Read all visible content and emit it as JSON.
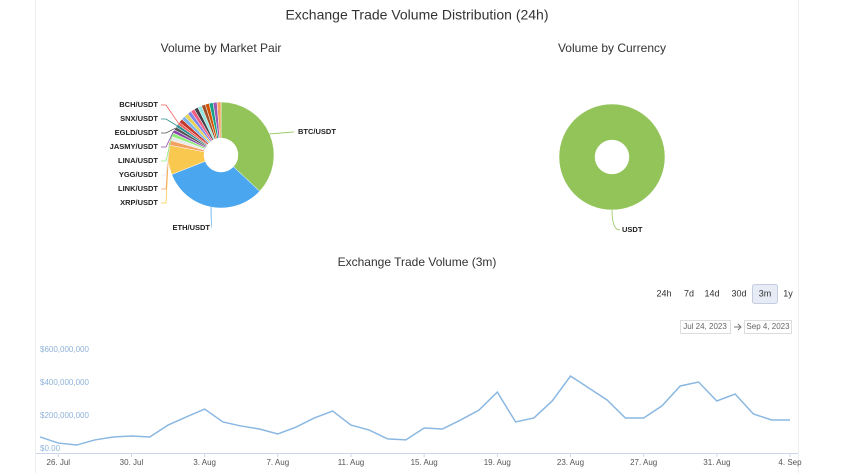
{
  "title": "Exchange Trade Volume Distribution (24h)",
  "range_buttons": {
    "options": [
      "24h",
      "7d",
      "14d",
      "30d",
      "3m",
      "1y"
    ],
    "selected": 4
  },
  "date_range": {
    "from": "Jul 24, 2023",
    "to": "Sep 4, 2023"
  },
  "chart_data": [
    {
      "type": "pie",
      "title": "Volume by Market Pair",
      "categories": [
        "BTC/USDT",
        "ETH/USDT",
        "XRP/USDT",
        "LINK/USDT",
        "YGG/USDT",
        "LINA/USDT",
        "JASMY/USDT",
        "EGLD/USDT",
        "SNX/USDT",
        "BCH/USDT",
        null,
        null,
        null,
        null,
        null,
        null,
        null,
        null,
        null,
        null,
        null,
        null
      ],
      "values": [
        37,
        32,
        9,
        1.5,
        1.2,
        1.2,
        1,
        1,
        0.9,
        0.8,
        1.2,
        1.2,
        1.2,
        1.2,
        1.2,
        1.2,
        1.2,
        1.2,
        1.2,
        1.2,
        1.2,
        1.2
      ],
      "colors": [
        "#92c45a",
        "#4aa6ee",
        "#f9c84e",
        "#f4a261",
        "#e9e9e9",
        "#90ed7d",
        "#8e44ad",
        "#555555",
        "#2b908f",
        "#f45b5b",
        "#c0392b",
        "#7cb5ec",
        "#e4d354",
        "#8085e9",
        "#f15c80",
        "#434348",
        "#91e8e1",
        "#a0522d",
        "#d35400",
        "#16a085",
        "#9b59b6",
        "#f7a35c"
      ]
    },
    {
      "type": "pie",
      "title": "Volume by Currency",
      "categories": [
        "USDT"
      ],
      "values": [
        100
      ],
      "colors": [
        "#92c45a"
      ]
    },
    {
      "type": "line",
      "title": "Exchange Trade Volume (3m)",
      "color": "#8ab8e2",
      "grid": false,
      "x": [
        "2023-07-25",
        "2023-07-26",
        "2023-07-27",
        "2023-07-28",
        "2023-07-29",
        "2023-07-30",
        "2023-07-31",
        "2023-08-01",
        "2023-08-02",
        "2023-08-03",
        "2023-08-04",
        "2023-08-05",
        "2023-08-06",
        "2023-08-07",
        "2023-08-08",
        "2023-08-09",
        "2023-08-10",
        "2023-08-11",
        "2023-08-12",
        "2023-08-13",
        "2023-08-14",
        "2023-08-15",
        "2023-08-16",
        "2023-08-17",
        "2023-08-18",
        "2023-08-19",
        "2023-08-20",
        "2023-08-21",
        "2023-08-22",
        "2023-08-23",
        "2023-08-24",
        "2023-08-25",
        "2023-08-26",
        "2023-08-27",
        "2023-08-28",
        "2023-08-29",
        "2023-08-30",
        "2023-08-31",
        "2023-09-01",
        "2023-09-02",
        "2023-09-03",
        "2023-09-04"
      ],
      "values": [
        73000000,
        36000000,
        24000000,
        55000000,
        73000000,
        79000000,
        73000000,
        145000000,
        194000000,
        242000000,
        164000000,
        139000000,
        121000000,
        91000000,
        133000000,
        188000000,
        230000000,
        145000000,
        115000000,
        61000000,
        55000000,
        127000000,
        121000000,
        176000000,
        236000000,
        345000000,
        164000000,
        188000000,
        291000000,
        442000000,
        370000000,
        297000000,
        188000000,
        188000000,
        261000000,
        382000000,
        406000000,
        291000000,
        333000000,
        212000000,
        176000000,
        176000000
      ],
      "xlim": [
        "2023-07-25",
        "2023-09-04"
      ],
      "xticks": [
        {
          "value": "2023-07-26",
          "label": "26. Jul"
        },
        {
          "value": "2023-07-30",
          "label": "30. Jul"
        },
        {
          "value": "2023-08-03",
          "label": "3. Aug"
        },
        {
          "value": "2023-08-07",
          "label": "7. Aug"
        },
        {
          "value": "2023-08-11",
          "label": "11. Aug"
        },
        {
          "value": "2023-08-15",
          "label": "15. Aug"
        },
        {
          "value": "2023-08-19",
          "label": "19. Aug"
        },
        {
          "value": "2023-08-23",
          "label": "23. Aug"
        },
        {
          "value": "2023-08-27",
          "label": "27. Aug"
        },
        {
          "value": "2023-08-31",
          "label": "31. Aug"
        },
        {
          "value": "2023-09-04",
          "label": "4. Sep"
        }
      ],
      "ylim": [
        0,
        600000000
      ],
      "yticks": [
        {
          "value": 0,
          "label": "$0.00"
        },
        {
          "value": 200000000,
          "label": "$200,000,000"
        },
        {
          "value": 400000000,
          "label": "$400,000,000"
        },
        {
          "value": 600000000,
          "label": "$600,000,000"
        }
      ]
    }
  ]
}
